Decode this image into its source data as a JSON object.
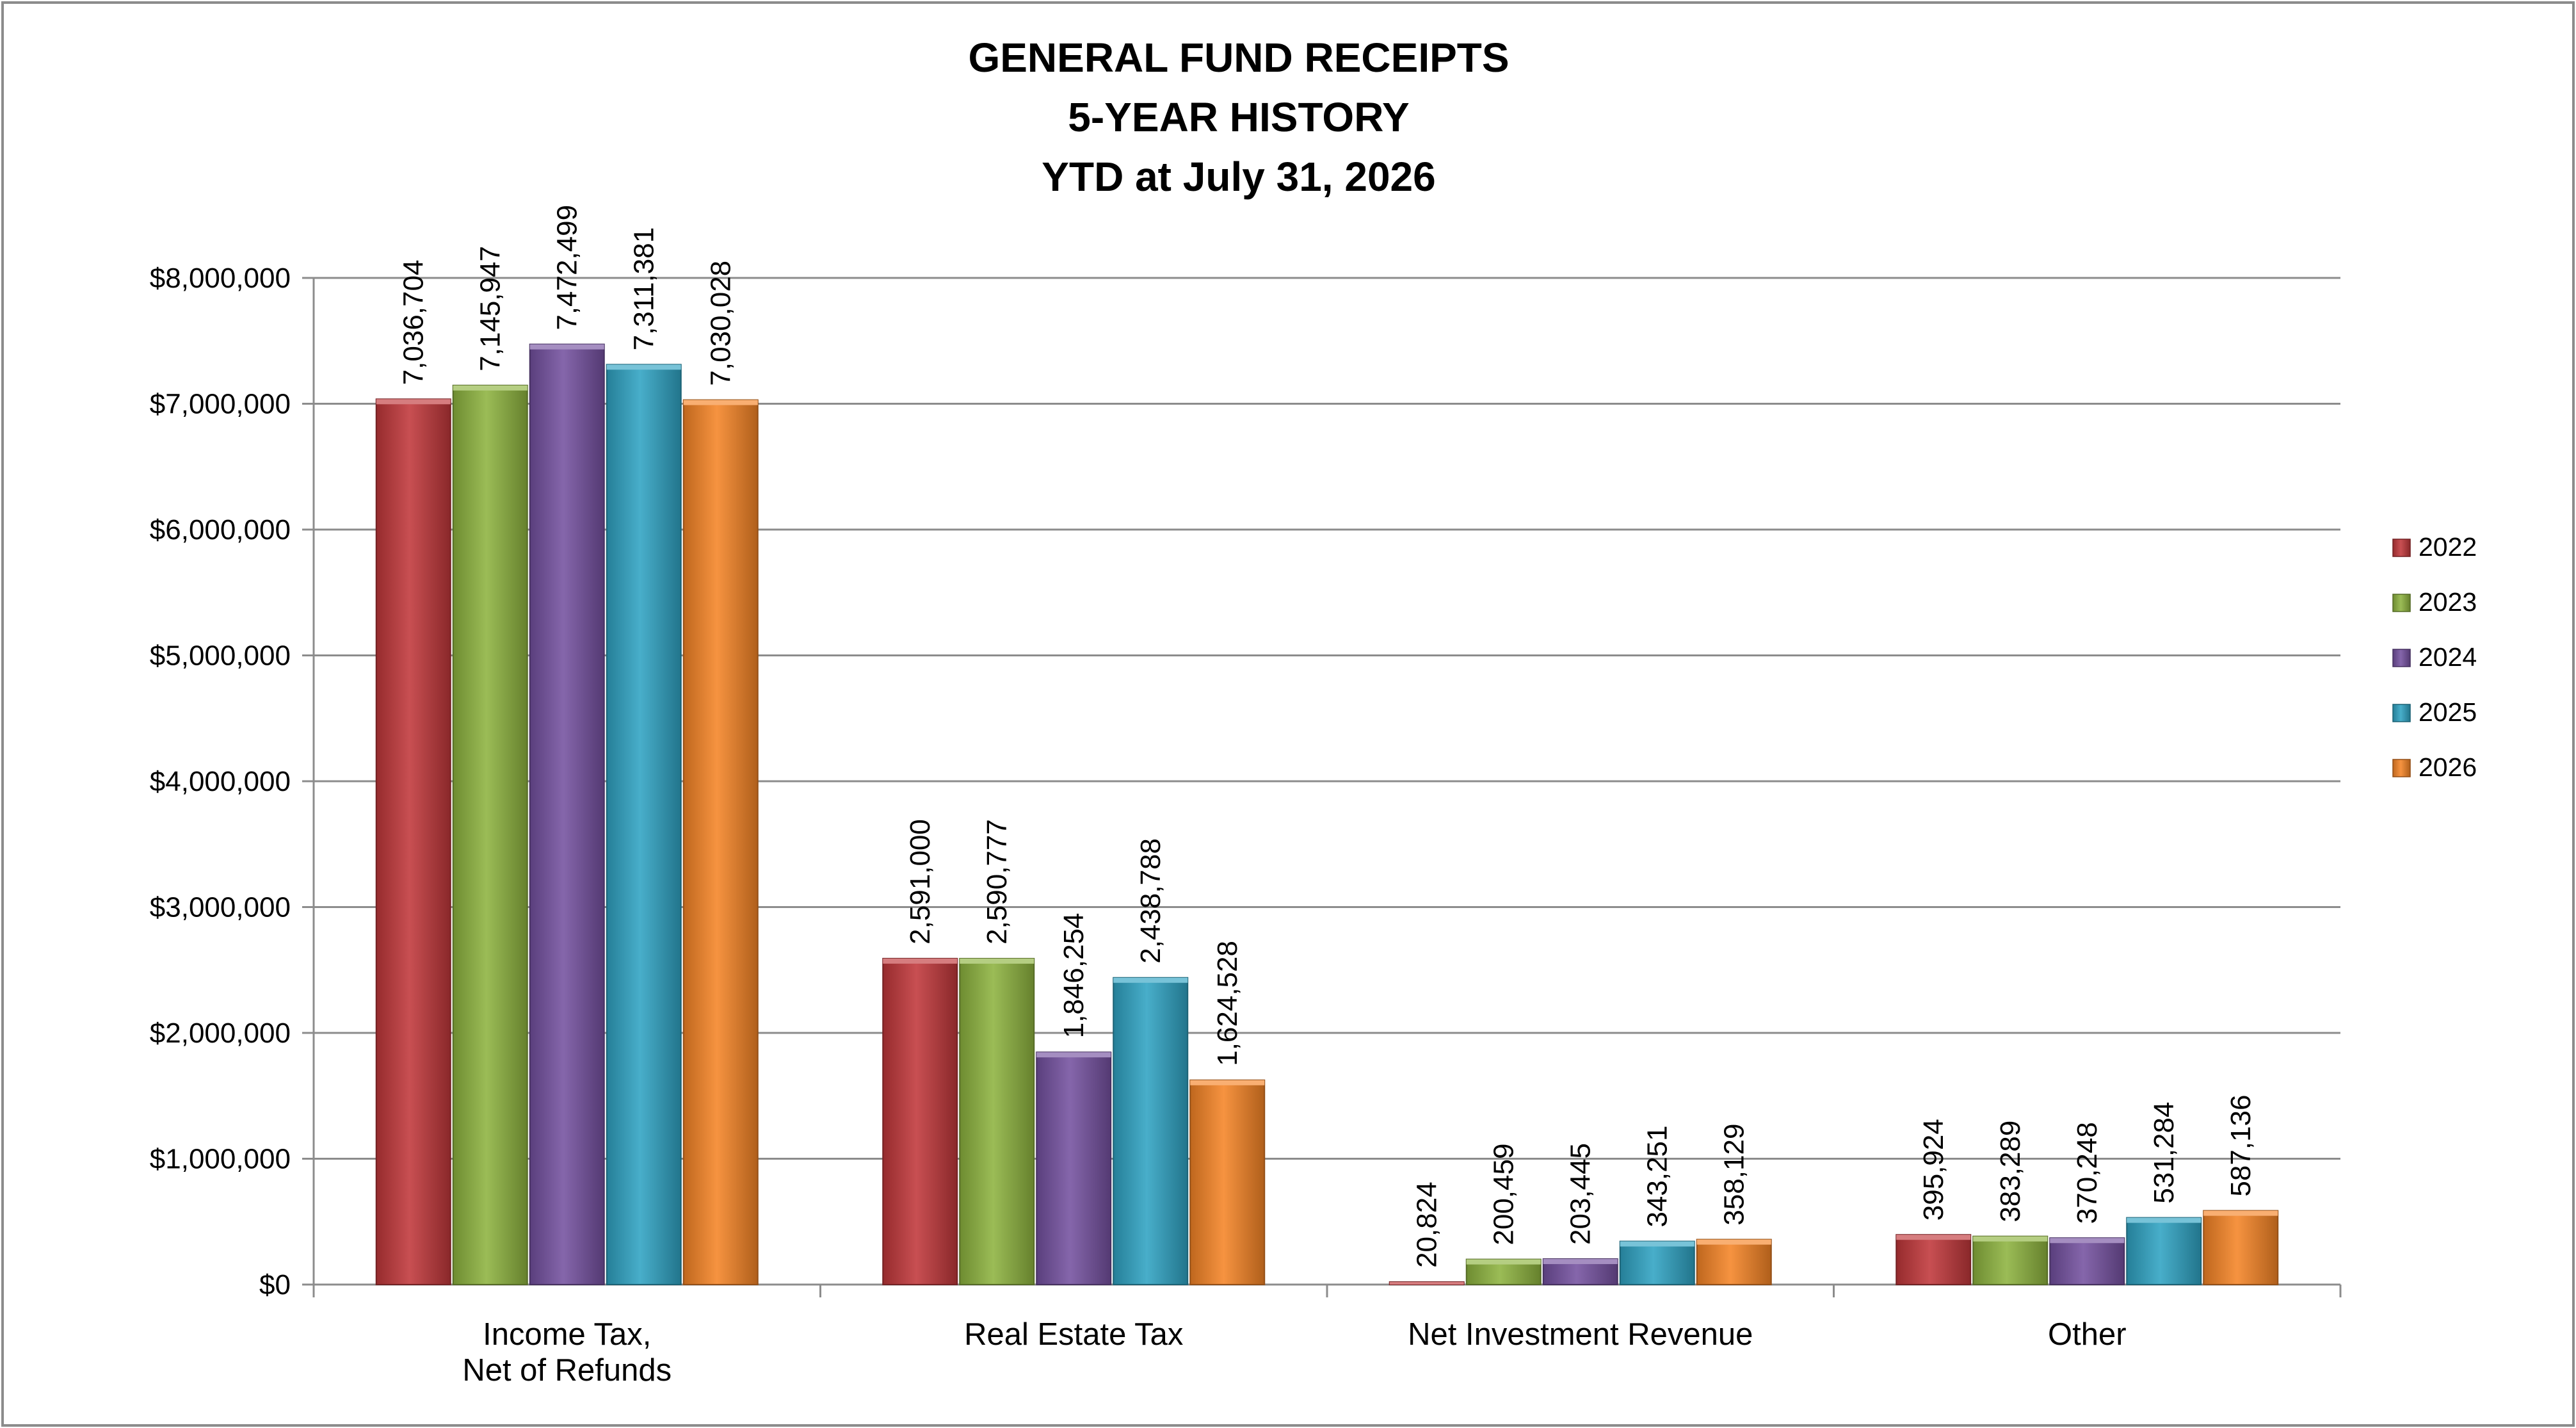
{
  "chart_data": {
    "type": "bar",
    "title": [
      "GENERAL FUND RECEIPTS",
      "5-YEAR HISTORY",
      "YTD at July 31, 2026"
    ],
    "categories": [
      [
        "Income Tax,",
        "Net of Refunds"
      ],
      [
        "Real Estate Tax"
      ],
      [
        "Net Investment Revenue"
      ],
      [
        "Other"
      ]
    ],
    "series": [
      {
        "name": "2022",
        "color": "#C0373A",
        "values": [
          7036704,
          2591000,
          20824,
          395924
        ],
        "labels": [
          "7,036,704",
          "2,591,000",
          "20,824",
          "395,924"
        ]
      },
      {
        "name": "2023",
        "color": "#8DB33F",
        "values": [
          7145947,
          2590777,
          200459,
          383289
        ],
        "labels": [
          "7,145,947",
          "2,590,777",
          "200,459",
          "383,289"
        ]
      },
      {
        "name": "2024",
        "color": "#7451A0",
        "values": [
          7472499,
          1846254,
          203445,
          370248
        ],
        "labels": [
          "7,472,499",
          "1,846,254",
          "203,445",
          "370,248"
        ]
      },
      {
        "name": "2025",
        "color": "#2FA3C3",
        "values": [
          7311381,
          2438788,
          343251,
          531284
        ],
        "labels": [
          "7,311,381",
          "2,438,788",
          "343,251",
          "531,284"
        ]
      },
      {
        "name": "2026",
        "color": "#F58426",
        "values": [
          7030028,
          1624528,
          358129,
          587136
        ],
        "labels": [
          "7,030,028",
          "1,624,528",
          "358,129",
          "587,136"
        ]
      }
    ],
    "ylim": [
      0,
      8000000
    ],
    "yticks": [
      0,
      1000000,
      2000000,
      3000000,
      4000000,
      5000000,
      6000000,
      7000000,
      8000000
    ],
    "ytick_labels": [
      "$0",
      "$1,000,000",
      "$2,000,000",
      "$3,000,000",
      "$4,000,000",
      "$5,000,000",
      "$6,000,000",
      "$7,000,000",
      "$8,000,000"
    ],
    "grid": true,
    "legend": "right"
  }
}
